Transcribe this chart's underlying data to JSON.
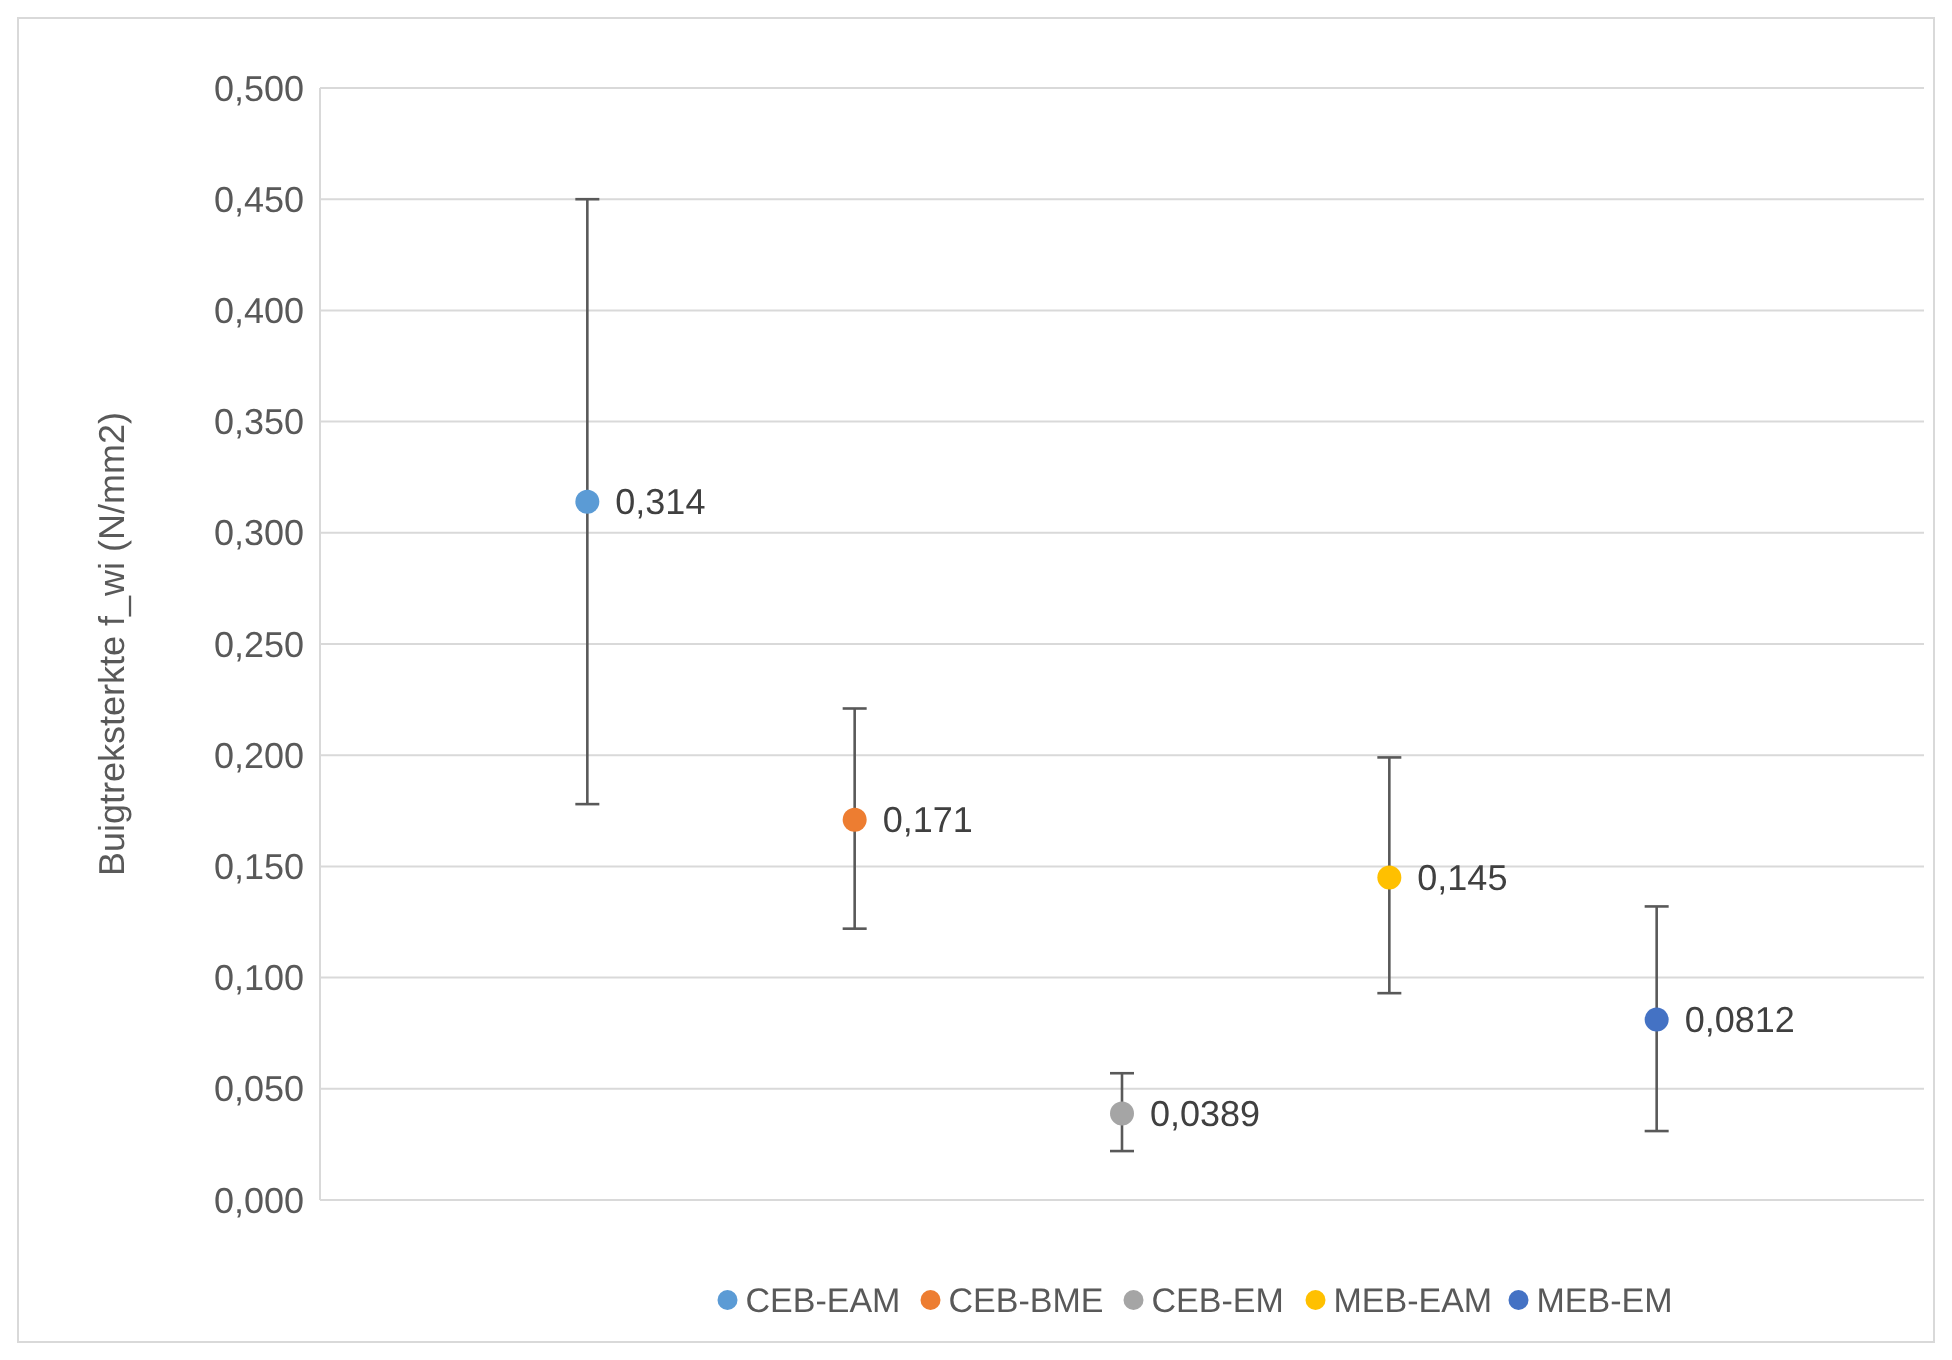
{
  "chart_data": {
    "type": "scatter",
    "ylabel": "Buigtreksterkte  f_wi  (N/mm2)",
    "categories": [
      null,
      null,
      null,
      null,
      null
    ],
    "ylim": [
      0,
      0.5
    ],
    "yticks": [
      {
        "value": 0,
        "label": "0,000"
      },
      {
        "value": 0.05,
        "label": "0,050"
      },
      {
        "value": 0.1,
        "label": "0,100"
      },
      {
        "value": 0.15,
        "label": "0,150"
      },
      {
        "value": 0.2,
        "label": "0,200"
      },
      {
        "value": 0.25,
        "label": "0,250"
      },
      {
        "value": 0.3,
        "label": "0,300"
      },
      {
        "value": 0.35,
        "label": "0,350"
      },
      {
        "value": 0.4,
        "label": "0,400"
      },
      {
        "value": 0.45,
        "label": "0,450"
      },
      {
        "value": 0.5,
        "label": "0,500"
      }
    ],
    "grid": "y",
    "legend": "bottom",
    "marker": "circle",
    "series": [
      {
        "name": "CEB-EAM",
        "color": "#5b9bd5",
        "values": [
          0.314,
          null,
          null,
          null,
          null
        ],
        "errors": [
          [
            0.178,
            0.45
          ],
          null,
          null,
          null,
          null
        ],
        "value_labels": [
          "0,314",
          null,
          null,
          null,
          null
        ]
      },
      {
        "name": "CEB-BME",
        "color": "#ed7d31",
        "values": [
          null,
          0.171,
          null,
          null,
          null
        ],
        "errors": [
          null,
          [
            0.122,
            0.221
          ],
          null,
          null,
          null
        ],
        "value_labels": [
          null,
          "0,171",
          null,
          null,
          null
        ]
      },
      {
        "name": "CEB-EM",
        "color": "#a5a5a5",
        "values": [
          null,
          null,
          0.0389,
          null,
          null
        ],
        "errors": [
          null,
          null,
          [
            0.022,
            0.057
          ],
          null,
          null
        ],
        "value_labels": [
          null,
          null,
          "0,0389",
          null,
          null
        ]
      },
      {
        "name": "MEB-EAM",
        "color": "#ffc000",
        "values": [
          null,
          null,
          null,
          0.145,
          null
        ],
        "errors": [
          null,
          null,
          null,
          [
            0.093,
            0.199
          ],
          null
        ],
        "value_labels": [
          null,
          null,
          null,
          "0,145",
          null
        ]
      },
      {
        "name": "MEB-EM",
        "color": "#4472c4",
        "values": [
          null,
          null,
          null,
          null,
          0.0812
        ],
        "errors": [
          null,
          null,
          null,
          null,
          [
            0.031,
            0.132
          ]
        ],
        "value_labels": [
          null,
          null,
          null,
          null,
          "0,0812"
        ]
      }
    ]
  }
}
